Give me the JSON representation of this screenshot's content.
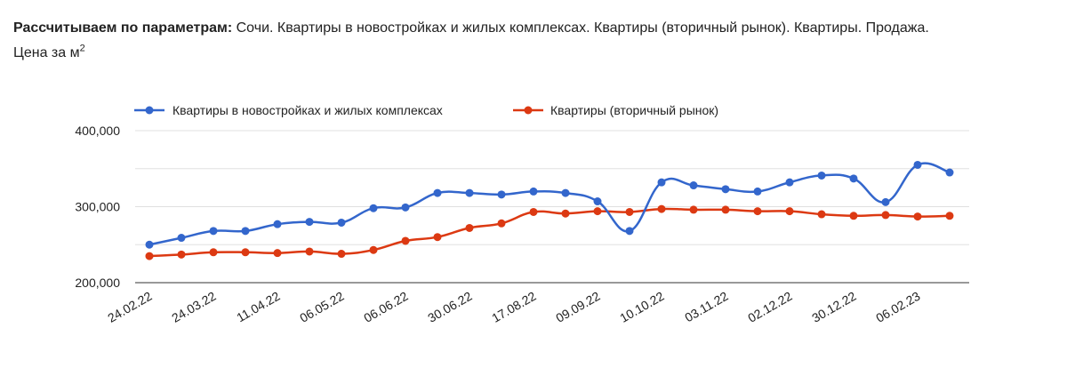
{
  "header": {
    "label": "Рассчитываем по параметрам:",
    "text": "Сочи. Квартиры в новостройках и жилых комплексах. Квартиры (вторичный рынок). Квартиры. Продажа.",
    "line2": "Цена за м",
    "superscript": "2"
  },
  "chart_data": {
    "type": "line",
    "title": "",
    "xlabel": "",
    "ylabel": "",
    "ylim": [
      200000,
      400000
    ],
    "yticks": [
      {
        "value": 200000,
        "label": "200,000"
      },
      {
        "value": 300000,
        "label": "300,000"
      },
      {
        "value": 400000,
        "label": "400,000"
      }
    ],
    "x_tick_labels": [
      {
        "index": 0,
        "label": "24.02.22"
      },
      {
        "index": 2,
        "label": "24.03.22"
      },
      {
        "index": 4,
        "label": "11.04.22"
      },
      {
        "index": 6,
        "label": "06.05.22"
      },
      {
        "index": 8,
        "label": "06.06.22"
      },
      {
        "index": 10,
        "label": "30.06.22"
      },
      {
        "index": 12,
        "label": "17.08.22"
      },
      {
        "index": 14,
        "label": "09.09.22"
      },
      {
        "index": 16,
        "label": "10.10.22"
      },
      {
        "index": 18,
        "label": "03.11.22"
      },
      {
        "index": 20,
        "label": "02.12.22"
      },
      {
        "index": 22,
        "label": "30.12.22"
      },
      {
        "index": 24,
        "label": "06.02.23"
      }
    ],
    "grid": true,
    "legend_position": "top",
    "series": [
      {
        "name": "Квартиры в новостройках и жилых комплексах",
        "color": "#3366cc",
        "values": [
          250000,
          259000,
          268000,
          268000,
          277000,
          280000,
          279000,
          298000,
          299000,
          318000,
          318000,
          316000,
          320000,
          318000,
          307000,
          268000,
          332000,
          328000,
          323000,
          320000,
          332000,
          341000,
          337000,
          306000,
          355000,
          345000
        ]
      },
      {
        "name": "Квартиры (вторичный рынок)",
        "color": "#dc3912",
        "values": [
          235000,
          237000,
          240000,
          240000,
          239000,
          241000,
          238000,
          243000,
          255000,
          260000,
          272000,
          278000,
          293000,
          291000,
          294000,
          293000,
          297000,
          296000,
          296000,
          294000,
          294000,
          290000,
          288000,
          289000,
          287000,
          288000
        ]
      }
    ]
  }
}
